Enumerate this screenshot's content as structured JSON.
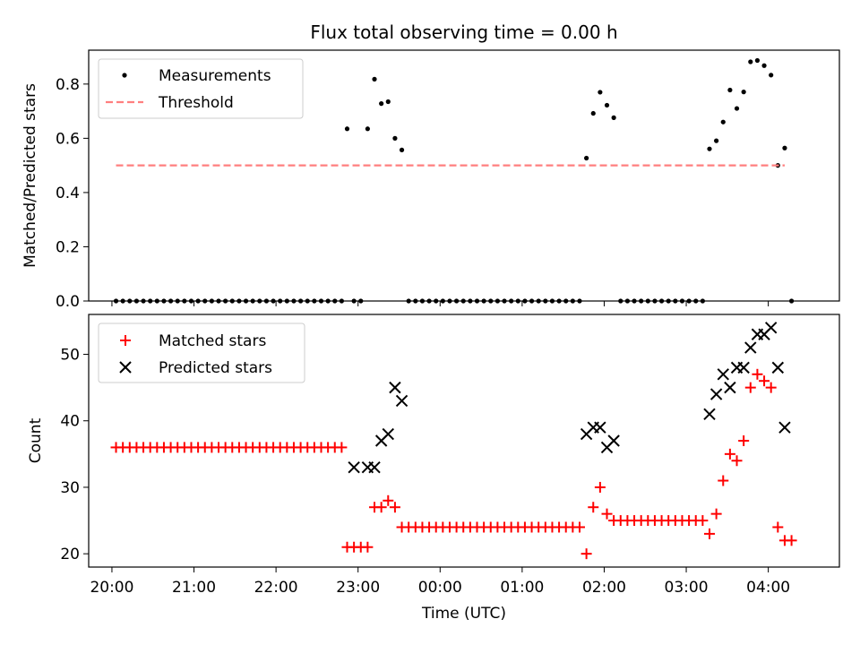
{
  "chart_data": [
    {
      "type": "scatter",
      "title": "Flux total observing time = 0.00 h",
      "xlabel": "",
      "ylabel": "Matched/Predicted stars",
      "ylim": [
        0,
        0.925
      ],
      "yticks": [
        0.0,
        0.2,
        0.4,
        0.6,
        0.8
      ],
      "ytick_labels": [
        "0.0",
        "0.2",
        "0.4",
        "0.6",
        "0.8"
      ],
      "xlim": [
        "19:43",
        "04:52"
      ],
      "legend": {
        "placement": "top-left",
        "entries": [
          "Measurements",
          "Threshold"
        ]
      },
      "series": [
        {
          "name": "Measurements",
          "marker": "dot",
          "color": "#000000",
          "points": [
            [
              "20:03",
              0
            ],
            [
              "20:08",
              0
            ],
            [
              "20:13",
              0
            ],
            [
              "20:18",
              0
            ],
            [
              "20:23",
              0
            ],
            [
              "20:28",
              0
            ],
            [
              "20:33",
              0
            ],
            [
              "20:38",
              0
            ],
            [
              "20:43",
              0
            ],
            [
              "20:48",
              0
            ],
            [
              "20:53",
              0
            ],
            [
              "20:58",
              0
            ],
            [
              "21:03",
              0
            ],
            [
              "21:08",
              0
            ],
            [
              "21:13",
              0
            ],
            [
              "21:18",
              0
            ],
            [
              "21:23",
              0
            ],
            [
              "21:28",
              0
            ],
            [
              "21:33",
              0
            ],
            [
              "21:38",
              0
            ],
            [
              "21:43",
              0
            ],
            [
              "21:48",
              0
            ],
            [
              "21:53",
              0
            ],
            [
              "21:58",
              0
            ],
            [
              "22:03",
              0
            ],
            [
              "22:08",
              0
            ],
            [
              "22:13",
              0
            ],
            [
              "22:18",
              0
            ],
            [
              "22:23",
              0
            ],
            [
              "22:28",
              0
            ],
            [
              "22:33",
              0
            ],
            [
              "22:38",
              0
            ],
            [
              "22:43",
              0
            ],
            [
              "22:48",
              0
            ],
            [
              "22:52",
              0.635
            ],
            [
              "22:57",
              0
            ],
            [
              "23:02",
              0
            ],
            [
              "23:07",
              0.635
            ],
            [
              "23:12",
              0.818
            ],
            [
              "23:17",
              0.728
            ],
            [
              "23:22",
              0.735
            ],
            [
              "23:27",
              0.6
            ],
            [
              "23:32",
              0.557
            ],
            [
              "23:37",
              0
            ],
            [
              "23:42",
              0
            ],
            [
              "23:47",
              0
            ],
            [
              "23:52",
              0
            ],
            [
              "23:57",
              0
            ],
            [
              "00:02",
              0
            ],
            [
              "00:07",
              0
            ],
            [
              "00:12",
              0
            ],
            [
              "00:17",
              0
            ],
            [
              "00:22",
              0
            ],
            [
              "00:27",
              0
            ],
            [
              "00:32",
              0
            ],
            [
              "00:37",
              0
            ],
            [
              "00:42",
              0
            ],
            [
              "00:47",
              0
            ],
            [
              "00:52",
              0
            ],
            [
              "00:57",
              0
            ],
            [
              "01:02",
              0
            ],
            [
              "01:07",
              0
            ],
            [
              "01:12",
              0
            ],
            [
              "01:17",
              0
            ],
            [
              "01:22",
              0
            ],
            [
              "01:27",
              0
            ],
            [
              "01:32",
              0
            ],
            [
              "01:37",
              0
            ],
            [
              "01:42",
              0
            ],
            [
              "01:47",
              0.527
            ],
            [
              "01:52",
              0.692
            ],
            [
              "01:57",
              0.77
            ],
            [
              "02:02",
              0.722
            ],
            [
              "02:07",
              0.676
            ],
            [
              "02:12",
              0
            ],
            [
              "02:17",
              0
            ],
            [
              "02:22",
              0
            ],
            [
              "02:27",
              0
            ],
            [
              "02:32",
              0
            ],
            [
              "02:37",
              0
            ],
            [
              "02:42",
              0
            ],
            [
              "02:47",
              0
            ],
            [
              "02:52",
              0
            ],
            [
              "02:57",
              0
            ],
            [
              "03:02",
              0
            ],
            [
              "03:07",
              0
            ],
            [
              "03:12",
              0
            ],
            [
              "03:17",
              0.561
            ],
            [
              "03:22",
              0.591
            ],
            [
              "03:27",
              0.66
            ],
            [
              "03:32",
              0.778
            ],
            [
              "03:37",
              0.71
            ],
            [
              "03:42",
              0.771
            ],
            [
              "03:47",
              0.882
            ],
            [
              "03:52",
              0.887
            ],
            [
              "03:57",
              0.868
            ],
            [
              "04:02",
              0.833
            ],
            [
              "04:07",
              0.5
            ],
            [
              "04:12",
              0.564
            ],
            [
              "04:17",
              0
            ]
          ]
        },
        {
          "name": "Threshold",
          "marker": "dashed-line",
          "color": "#ff7f7f",
          "points": [
            [
              "20:03",
              0.5
            ],
            [
              "04:12",
              0.5
            ]
          ]
        }
      ]
    },
    {
      "type": "scatter",
      "title": "",
      "xlabel": "Time (UTC)",
      "ylabel": "Count",
      "ylim": [
        18,
        56
      ],
      "yticks": [
        20,
        30,
        40,
        50
      ],
      "ytick_labels": [
        "20",
        "30",
        "40",
        "50"
      ],
      "xlim": [
        "19:43",
        "04:52"
      ],
      "xticks": [
        "20:00",
        "21:00",
        "22:00",
        "23:00",
        "00:00",
        "01:00",
        "02:00",
        "03:00",
        "04:00"
      ],
      "legend": {
        "placement": "top-left",
        "entries": [
          "Matched stars",
          "Predicted stars"
        ]
      },
      "series": [
        {
          "name": "Matched stars",
          "marker": "plus",
          "color": "#ff0000",
          "points": [
            [
              "20:03",
              36
            ],
            [
              "20:08",
              36
            ],
            [
              "20:13",
              36
            ],
            [
              "20:18",
              36
            ],
            [
              "20:23",
              36
            ],
            [
              "20:28",
              36
            ],
            [
              "20:33",
              36
            ],
            [
              "20:38",
              36
            ],
            [
              "20:43",
              36
            ],
            [
              "20:48",
              36
            ],
            [
              "20:53",
              36
            ],
            [
              "20:58",
              36
            ],
            [
              "21:03",
              36
            ],
            [
              "21:08",
              36
            ],
            [
              "21:13",
              36
            ],
            [
              "21:18",
              36
            ],
            [
              "21:23",
              36
            ],
            [
              "21:28",
              36
            ],
            [
              "21:33",
              36
            ],
            [
              "21:38",
              36
            ],
            [
              "21:43",
              36
            ],
            [
              "21:48",
              36
            ],
            [
              "21:53",
              36
            ],
            [
              "21:58",
              36
            ],
            [
              "22:03",
              36
            ],
            [
              "22:08",
              36
            ],
            [
              "22:13",
              36
            ],
            [
              "22:18",
              36
            ],
            [
              "22:23",
              36
            ],
            [
              "22:28",
              36
            ],
            [
              "22:33",
              36
            ],
            [
              "22:38",
              36
            ],
            [
              "22:43",
              36
            ],
            [
              "22:48",
              36
            ],
            [
              "22:52",
              21
            ],
            [
              "22:57",
              21
            ],
            [
              "23:02",
              21
            ],
            [
              "23:07",
              21
            ],
            [
              "23:12",
              27
            ],
            [
              "23:17",
              27
            ],
            [
              "23:22",
              28
            ],
            [
              "23:27",
              27
            ],
            [
              "23:32",
              24
            ],
            [
              "23:37",
              24
            ],
            [
              "23:42",
              24
            ],
            [
              "23:47",
              24
            ],
            [
              "23:52",
              24
            ],
            [
              "23:57",
              24
            ],
            [
              "00:02",
              24
            ],
            [
              "00:07",
              24
            ],
            [
              "00:12",
              24
            ],
            [
              "00:17",
              24
            ],
            [
              "00:22",
              24
            ],
            [
              "00:27",
              24
            ],
            [
              "00:32",
              24
            ],
            [
              "00:37",
              24
            ],
            [
              "00:42",
              24
            ],
            [
              "00:47",
              24
            ],
            [
              "00:52",
              24
            ],
            [
              "00:57",
              24
            ],
            [
              "01:02",
              24
            ],
            [
              "01:07",
              24
            ],
            [
              "01:12",
              24
            ],
            [
              "01:17",
              24
            ],
            [
              "01:22",
              24
            ],
            [
              "01:27",
              24
            ],
            [
              "01:32",
              24
            ],
            [
              "01:37",
              24
            ],
            [
              "01:42",
              24
            ],
            [
              "01:47",
              20
            ],
            [
              "01:52",
              27
            ],
            [
              "01:57",
              30
            ],
            [
              "02:02",
              26
            ],
            [
              "02:07",
              25
            ],
            [
              "02:12",
              25
            ],
            [
              "02:17",
              25
            ],
            [
              "02:22",
              25
            ],
            [
              "02:27",
              25
            ],
            [
              "02:32",
              25
            ],
            [
              "02:37",
              25
            ],
            [
              "02:42",
              25
            ],
            [
              "02:47",
              25
            ],
            [
              "02:52",
              25
            ],
            [
              "02:57",
              25
            ],
            [
              "03:02",
              25
            ],
            [
              "03:07",
              25
            ],
            [
              "03:12",
              25
            ],
            [
              "03:17",
              23
            ],
            [
              "03:22",
              26
            ],
            [
              "03:27",
              31
            ],
            [
              "03:32",
              35
            ],
            [
              "03:37",
              34
            ],
            [
              "03:42",
              37
            ],
            [
              "03:47",
              45
            ],
            [
              "03:52",
              47
            ],
            [
              "03:57",
              46
            ],
            [
              "04:02",
              45
            ],
            [
              "04:07",
              24
            ],
            [
              "04:12",
              22
            ],
            [
              "04:17",
              22
            ]
          ]
        },
        {
          "name": "Predicted stars",
          "marker": "x",
          "color": "#000000",
          "points": [
            [
              "22:57",
              33
            ],
            [
              "23:07",
              33
            ],
            [
              "23:12",
              33
            ],
            [
              "23:17",
              37
            ],
            [
              "23:22",
              38
            ],
            [
              "23:27",
              45
            ],
            [
              "23:32",
              43
            ],
            [
              "01:47",
              38
            ],
            [
              "01:52",
              39
            ],
            [
              "01:57",
              39
            ],
            [
              "02:02",
              36
            ],
            [
              "02:07",
              37
            ],
            [
              "03:17",
              41
            ],
            [
              "03:22",
              44
            ],
            [
              "03:27",
              47
            ],
            [
              "03:32",
              45
            ],
            [
              "03:37",
              48
            ],
            [
              "03:42",
              48
            ],
            [
              "03:47",
              51
            ],
            [
              "03:52",
              53
            ],
            [
              "03:57",
              53
            ],
            [
              "04:02",
              54
            ],
            [
              "04:07",
              48
            ],
            [
              "04:12",
              39
            ]
          ]
        }
      ]
    }
  ]
}
